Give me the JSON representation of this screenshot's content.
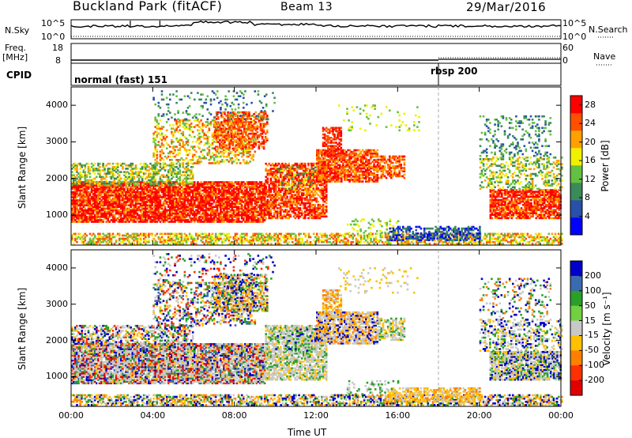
{
  "header": {
    "station": "Buckland Park (fitACF)",
    "beam": "Beam 13",
    "date": "29/Mar/2016"
  },
  "top_panels": {
    "nsky_label": "N.Sky",
    "nsky_top": "10^5",
    "nsky_bottom": "10^0",
    "nsearch_label": "N.Search",
    "freq_label_1": "Freq.",
    "freq_label_2": "[MHz]",
    "freq_top": "18",
    "freq_bottom": "8",
    "nave_label": "Nave",
    "nave_top": "60",
    "nave_bottom": "0",
    "cpid_label": "CPID",
    "cpid_mode_1": "normal (fast) 151",
    "cpid_mode_2": "rbsp 200"
  },
  "chart_data": [
    {
      "type": "heatmap",
      "name": "Power",
      "ylabel": "Slant Range [km]",
      "xlabel": "",
      "x_ticks": [
        "00:00",
        "04:00",
        "08:00",
        "12:00",
        "16:00",
        "20:00",
        "00:00"
      ],
      "x_range_hours": [
        0,
        24
      ],
      "y_ticks": [
        1000,
        2000,
        3000,
        4000
      ],
      "y_range": [
        180,
        4500
      ],
      "colorbar_label": "Power [dB]",
      "colorbar_ticks": [
        4,
        8,
        12,
        16,
        20,
        24,
        28
      ],
      "colorbar_range": [
        0,
        30
      ],
      "colors": [
        "#0000ff",
        "#2850a8",
        "#3a8a5a",
        "#64c040",
        "#f0f000",
        "#ffa000",
        "#ff5000",
        "#ff0000"
      ],
      "mode_change_hour": 18.0
    },
    {
      "type": "heatmap",
      "name": "Velocity",
      "ylabel": "Slant Range [km]",
      "xlabel": "Time UT",
      "x_ticks": [
        "00:00",
        "04:00",
        "08:00",
        "12:00",
        "16:00",
        "20:00",
        "00:00"
      ],
      "x_range_hours": [
        0,
        24
      ],
      "y_ticks": [
        1000,
        2000,
        3000,
        4000
      ],
      "y_range": [
        180,
        4500
      ],
      "colorbar_label": "Velocity [m s⁻¹]",
      "colorbar_ticks": [
        200,
        100,
        50,
        15,
        -15,
        -50,
        -100,
        -200
      ],
      "colors": [
        "#0000c8",
        "#3a6ab0",
        "#2aa02a",
        "#70d040",
        "#c8c8c8",
        "#ffc000",
        "#ff8000",
        "#ff3000",
        "#e00000"
      ],
      "mode_change_hour": 18.0
    }
  ]
}
